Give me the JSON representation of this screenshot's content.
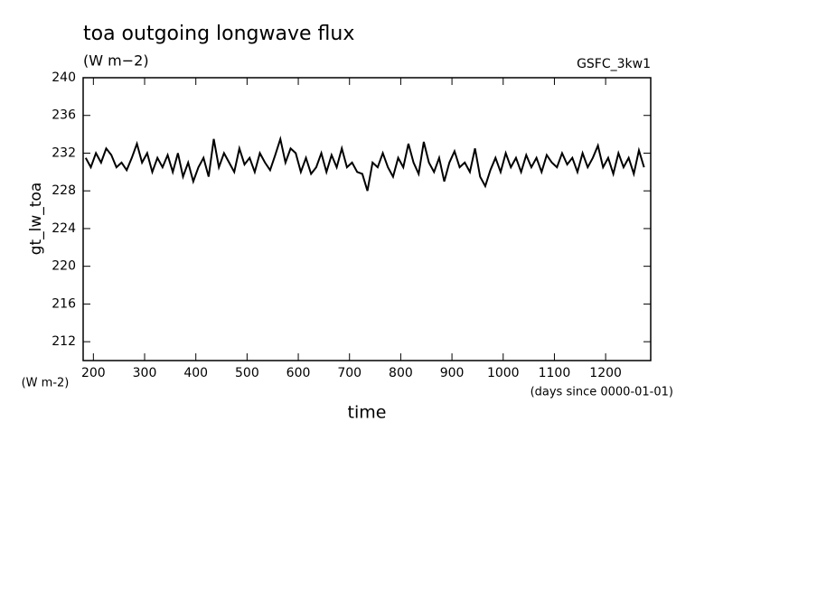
{
  "chart_data": {
    "type": "line",
    "title": "toa outgoing longwave flux",
    "subtitle": "(W m−2)",
    "dataset_label": "GSFC_3kw1",
    "y_label": "gt_lw_toa",
    "y_units": "(W m-2)",
    "x_label": "time",
    "x_units": "(days since 0000-01-01)",
    "x": [
      185,
      195,
      205,
      215,
      225,
      235,
      245,
      255,
      265,
      275,
      285,
      295,
      305,
      315,
      325,
      335,
      345,
      355,
      365,
      375,
      385,
      395,
      405,
      415,
      425,
      435,
      445,
      455,
      465,
      475,
      485,
      495,
      505,
      515,
      525,
      535,
      545,
      555,
      565,
      575,
      585,
      595,
      605,
      615,
      625,
      635,
      645,
      655,
      665,
      675,
      685,
      695,
      705,
      715,
      725,
      735,
      745,
      755,
      765,
      775,
      785,
      795,
      805,
      815,
      825,
      835,
      845,
      855,
      865,
      875,
      885,
      895,
      905,
      915,
      925,
      935,
      945,
      955,
      965,
      975,
      985,
      995,
      1005,
      1015,
      1025,
      1035,
      1045,
      1055,
      1065,
      1075,
      1085,
      1095,
      1105,
      1115,
      1125,
      1135,
      1145,
      1155,
      1165,
      1175,
      1185,
      1195,
      1205,
      1215,
      1225,
      1235,
      1245,
      1255,
      1265,
      1275
    ],
    "series": [
      {
        "name": "gt_lw_toa",
        "color": "#000000",
        "values": [
          231.5,
          230.5,
          232,
          231,
          232.5,
          231.8,
          230.5,
          231,
          230.2,
          231.5,
          233,
          231,
          232,
          230,
          231.5,
          230.5,
          231.8,
          230,
          232,
          229.5,
          231,
          229,
          230.5,
          231.5,
          229.5,
          233.5,
          230.5,
          232,
          231,
          230,
          232.5,
          230.8,
          231.5,
          230,
          232,
          231,
          230.2,
          231.8,
          233.5,
          231,
          232.5,
          232,
          230,
          231.5,
          229.8,
          230.5,
          232,
          230,
          231.8,
          230.5,
          232.5,
          230.5,
          231,
          230,
          229.8,
          228,
          231,
          230.5,
          232,
          230.5,
          229.5,
          231.5,
          230.5,
          233,
          231,
          229.8,
          233.2,
          231,
          230,
          231.5,
          229,
          231,
          232.2,
          230.5,
          231,
          230,
          232.5,
          229.5,
          228.5,
          230.2,
          231.5,
          230,
          232,
          230.5,
          231.5,
          230,
          231.8,
          230.5,
          231.5,
          230,
          231.8,
          231,
          230.5,
          232,
          230.8,
          231.5,
          230,
          232,
          230.5,
          231.5,
          232.8,
          230.5,
          231.5,
          229.8,
          232,
          230.5,
          231.5,
          229.8,
          232.3,
          230.5
        ]
      }
    ],
    "xlim": [
      180,
      1288
    ],
    "ylim": [
      210,
      240
    ],
    "xticks": [
      200,
      300,
      400,
      500,
      600,
      700,
      800,
      900,
      1000,
      1100,
      1200
    ],
    "yticks": [
      212,
      216,
      220,
      224,
      228,
      232,
      236,
      240
    ]
  }
}
